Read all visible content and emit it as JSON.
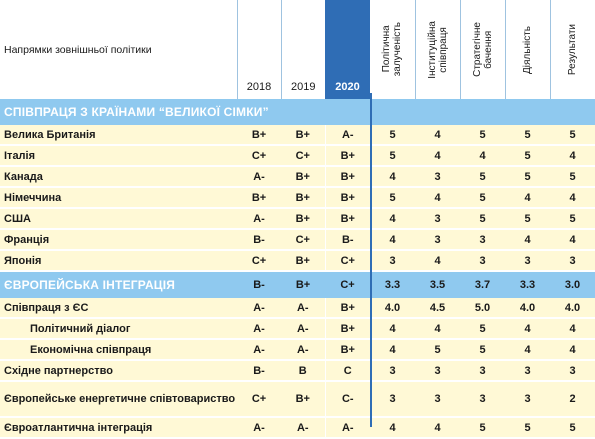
{
  "header": {
    "direction_label": "Напрямки зовнішньої політики",
    "years": [
      "2018",
      "2019",
      "2020"
    ],
    "criteria": [
      "Політична\nзалученість",
      "Інституційна\nспівпраця",
      "Стратегічне\nбачення",
      "Діяльність",
      "Результати"
    ]
  },
  "sections": [
    {
      "title": "СПІВПРАЦЯ З КРАЇНАМИ “ВЕЛИКОЇ СІМКИ”",
      "grades": [
        "",
        "",
        ""
      ],
      "scores": [
        "",
        "",
        "",
        "",
        ""
      ],
      "rows": [
        {
          "label": "Велика Британія",
          "grades": [
            "B+",
            "B+",
            "A-"
          ],
          "scores": [
            "5",
            "4",
            "5",
            "5",
            "5"
          ]
        },
        {
          "label": "Італія",
          "grades": [
            "C+",
            "C+",
            "B+"
          ],
          "scores": [
            "5",
            "4",
            "4",
            "5",
            "4"
          ]
        },
        {
          "label": "Канада",
          "grades": [
            "A-",
            "B+",
            "B+"
          ],
          "scores": [
            "4",
            "3",
            "5",
            "5",
            "5"
          ]
        },
        {
          "label": "Німеччина",
          "grades": [
            "B+",
            "B+",
            "B+"
          ],
          "scores": [
            "5",
            "4",
            "5",
            "4",
            "4"
          ]
        },
        {
          "label": "США",
          "grades": [
            "A-",
            "B+",
            "B+"
          ],
          "scores": [
            "4",
            "3",
            "5",
            "5",
            "5"
          ]
        },
        {
          "label": "Франція",
          "grades": [
            "B-",
            "C+",
            "B-"
          ],
          "scores": [
            "4",
            "3",
            "3",
            "4",
            "4"
          ]
        },
        {
          "label": "Японія",
          "grades": [
            "C+",
            "B+",
            "C+"
          ],
          "scores": [
            "3",
            "4",
            "3",
            "3",
            "3"
          ]
        }
      ]
    },
    {
      "title": "ЄВРОПЕЙСЬКА ІНТЕГРАЦІЯ",
      "grades": [
        "B-",
        "B+",
        "C+"
      ],
      "scores": [
        "3.3",
        "3.5",
        "3.7",
        "3.3",
        "3.0"
      ],
      "rows": [
        {
          "label": "Співпраця з ЄС",
          "grades": [
            "A-",
            "A-",
            "B+"
          ],
          "scores": [
            "4.0",
            "4.5",
            "5.0",
            "4.0",
            "4.0"
          ]
        },
        {
          "label": "Політичний діалог",
          "indent": true,
          "grades": [
            "A-",
            "A-",
            "B+"
          ],
          "scores": [
            "4",
            "4",
            "5",
            "4",
            "4"
          ]
        },
        {
          "label": "Економічна співпраця",
          "indent": true,
          "grades": [
            "A-",
            "A-",
            "B+"
          ],
          "scores": [
            "4",
            "5",
            "5",
            "4",
            "4"
          ]
        },
        {
          "label": "Східне партнерство",
          "grades": [
            "B-",
            "B",
            "C"
          ],
          "scores": [
            "3",
            "3",
            "3",
            "3",
            "3"
          ]
        },
        {
          "label": "Європейське енергетичне співтовариство",
          "tall": true,
          "grades": [
            "C+",
            "B+",
            "C-"
          ],
          "scores": [
            "3",
            "3",
            "3",
            "3",
            "2"
          ]
        },
        {
          "label": "Євроатлантична інтеграція",
          "grades": [
            "A-",
            "A-",
            "A-"
          ],
          "scores": [
            "4",
            "4",
            "5",
            "5",
            "5"
          ]
        }
      ]
    }
  ],
  "colors": {
    "accent": "#2f6db5",
    "section_bg": "#8fc9ef",
    "row_bg": "#fff9d6"
  }
}
